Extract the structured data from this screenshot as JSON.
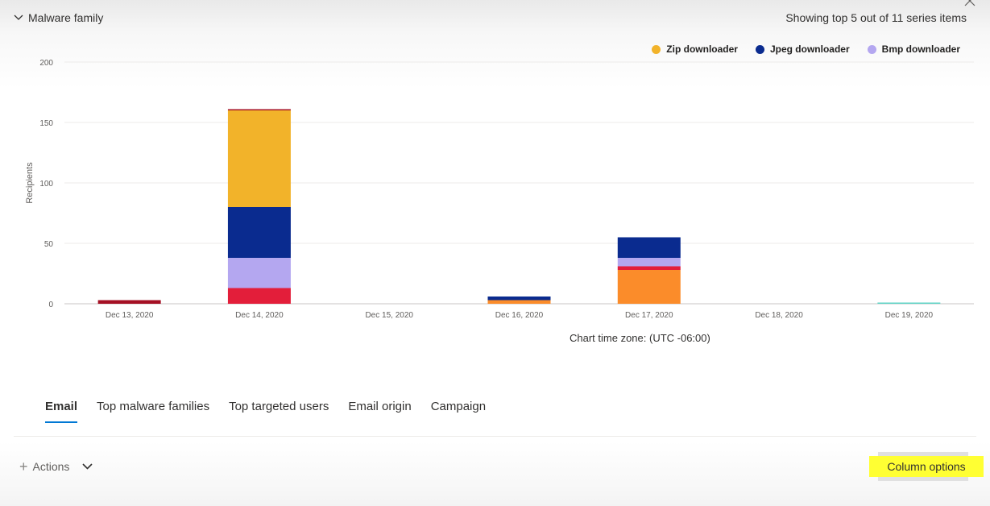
{
  "header": {
    "section_title": "Malware family",
    "series_info": "Showing top 5 out of 11 series items"
  },
  "legend": [
    {
      "label": "Zip downloader",
      "color": "#f2b32a"
    },
    {
      "label": "Jpeg downloader",
      "color": "#0a2b8f"
    },
    {
      "label": "Bmp downloader",
      "color": "#b4a7f0"
    }
  ],
  "chart_data": {
    "type": "bar",
    "stacked": true,
    "ylabel": "Recipients",
    "xlabel": "",
    "ylim": [
      0,
      200
    ],
    "yticks": [
      0,
      50,
      100,
      150,
      200
    ],
    "grid": true,
    "legend_position": "top-right",
    "categories": [
      "Dec 13, 2020",
      "Dec 14, 2020",
      "Dec 15, 2020",
      "Dec 16, 2020",
      "Dec 17, 2020",
      "Dec 18, 2020",
      "Dec 19, 2020"
    ],
    "series": [
      {
        "color": "#fb8c2a",
        "values": [
          0,
          0,
          0,
          3,
          28,
          0,
          0
        ]
      },
      {
        "color": "#e31e3a",
        "values": [
          0,
          13,
          0,
          0,
          3,
          0,
          0
        ]
      },
      {
        "color": "#b4a7f0",
        "values": [
          0,
          25,
          0,
          0,
          7,
          0,
          0
        ]
      },
      {
        "color": "#0a2b8f",
        "values": [
          0,
          42,
          0,
          3,
          17,
          0,
          0
        ]
      },
      {
        "color": "#f2b32a",
        "values": [
          0,
          80,
          0,
          0,
          0,
          0,
          0
        ]
      },
      {
        "color": "#a51024",
        "values": [
          3,
          1,
          0,
          0,
          0,
          0,
          0
        ]
      },
      {
        "color": "#5fd4c6",
        "values": [
          0,
          0,
          0,
          0,
          0,
          0,
          1
        ]
      }
    ]
  },
  "timezone_label": "Chart time zone: (UTC -06:00)",
  "tabs": [
    {
      "label": "Email",
      "active": true
    },
    {
      "label": "Top malware families",
      "active": false
    },
    {
      "label": "Top targeted users",
      "active": false
    },
    {
      "label": "Email origin",
      "active": false
    },
    {
      "label": "Campaign",
      "active": false
    }
  ],
  "toolbar": {
    "actions_label": "Actions",
    "column_options_label": "Column options"
  }
}
